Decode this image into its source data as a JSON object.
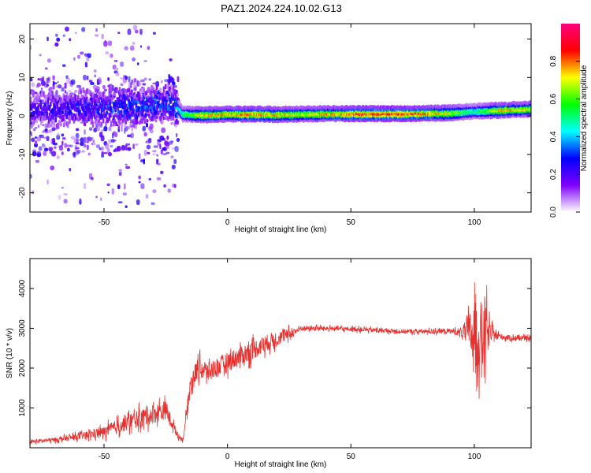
{
  "title": "PAZ1.2024.224.10.02.G13",
  "chart_data": [
    {
      "type": "heatmap",
      "xlabel": "Height of straight line (km)",
      "ylabel": "Frequency (Hz)",
      "xlim": [
        -80,
        123
      ],
      "ylim": [
        -25,
        24
      ],
      "xticks": [
        -50,
        0,
        50,
        100
      ],
      "yticks": [
        -20,
        -10,
        0,
        10,
        20
      ],
      "colorbar": {
        "label": "Normalized spectral amplitude",
        "range": [
          0,
          1
        ],
        "ticks": [
          "0.0",
          "0.2",
          "0.4",
          "0.6",
          "0.8"
        ],
        "tick_values": [
          0.0,
          0.2,
          0.4,
          0.6,
          0.8
        ],
        "colors": [
          "#ffffff",
          "#8000ff",
          "#0000ff",
          "#00ffff",
          "#00ff00",
          "#ffff00",
          "#ff0000",
          "#ff0080"
        ]
      },
      "ridge": {
        "x": [
          -80,
          -60,
          -40,
          -30,
          -22,
          -18,
          -10,
          0,
          10,
          20,
          30,
          40,
          50,
          60,
          70,
          80,
          90,
          100,
          110,
          123
        ],
        "frequency": [
          1.5,
          2.0,
          2.5,
          3.0,
          3.5,
          0.5,
          0.3,
          0.5,
          0.5,
          0.4,
          0.5,
          0.6,
          0.6,
          0.6,
          0.6,
          0.7,
          0.8,
          1.2,
          1.5,
          1.8
        ],
        "amplitude": [
          0.2,
          0.25,
          0.3,
          0.3,
          0.3,
          0.55,
          0.75,
          0.75,
          0.8,
          0.75,
          0.7,
          0.75,
          0.8,
          0.85,
          0.85,
          0.8,
          0.7,
          0.5,
          0.75,
          0.7
        ]
      }
    },
    {
      "type": "line",
      "xlabel": "Height of straight line (km)",
      "ylabel": "SNR (10 * v/v)",
      "xlim": [
        -80,
        123
      ],
      "ylim": [
        0,
        4750
      ],
      "xticks": [
        -50,
        0,
        50,
        100
      ],
      "yticks": [
        1000,
        2000,
        3000,
        4000
      ],
      "color": "#e8312e",
      "envelope": {
        "x": [
          -80,
          -70,
          -60,
          -50,
          -45,
          -40,
          -35,
          -30,
          -25,
          -20,
          -18,
          -15,
          -12,
          -8,
          -5,
          0,
          5,
          10,
          15,
          20,
          25,
          30,
          40,
          50,
          60,
          70,
          80,
          90,
          95,
          100,
          102,
          104,
          106,
          108,
          110,
          115,
          123
        ],
        "value": [
          150,
          200,
          280,
          400,
          520,
          650,
          750,
          850,
          950,
          300,
          200,
          1600,
          2000,
          1900,
          2000,
          2150,
          2300,
          2450,
          2600,
          2750,
          2850,
          3000,
          3000,
          2980,
          2950,
          2920,
          2920,
          2930,
          2900,
          2900,
          2700,
          2850,
          2900,
          2850,
          2800,
          2750,
          2750
        ],
        "noise": [
          80,
          100,
          150,
          250,
          320,
          380,
          420,
          450,
          420,
          120,
          100,
          450,
          500,
          450,
          450,
          450,
          450,
          450,
          400,
          350,
          250,
          120,
          100,
          100,
          100,
          100,
          100,
          120,
          200,
          1400,
          1600,
          1900,
          600,
          200,
          150,
          120,
          100
        ]
      }
    }
  ]
}
